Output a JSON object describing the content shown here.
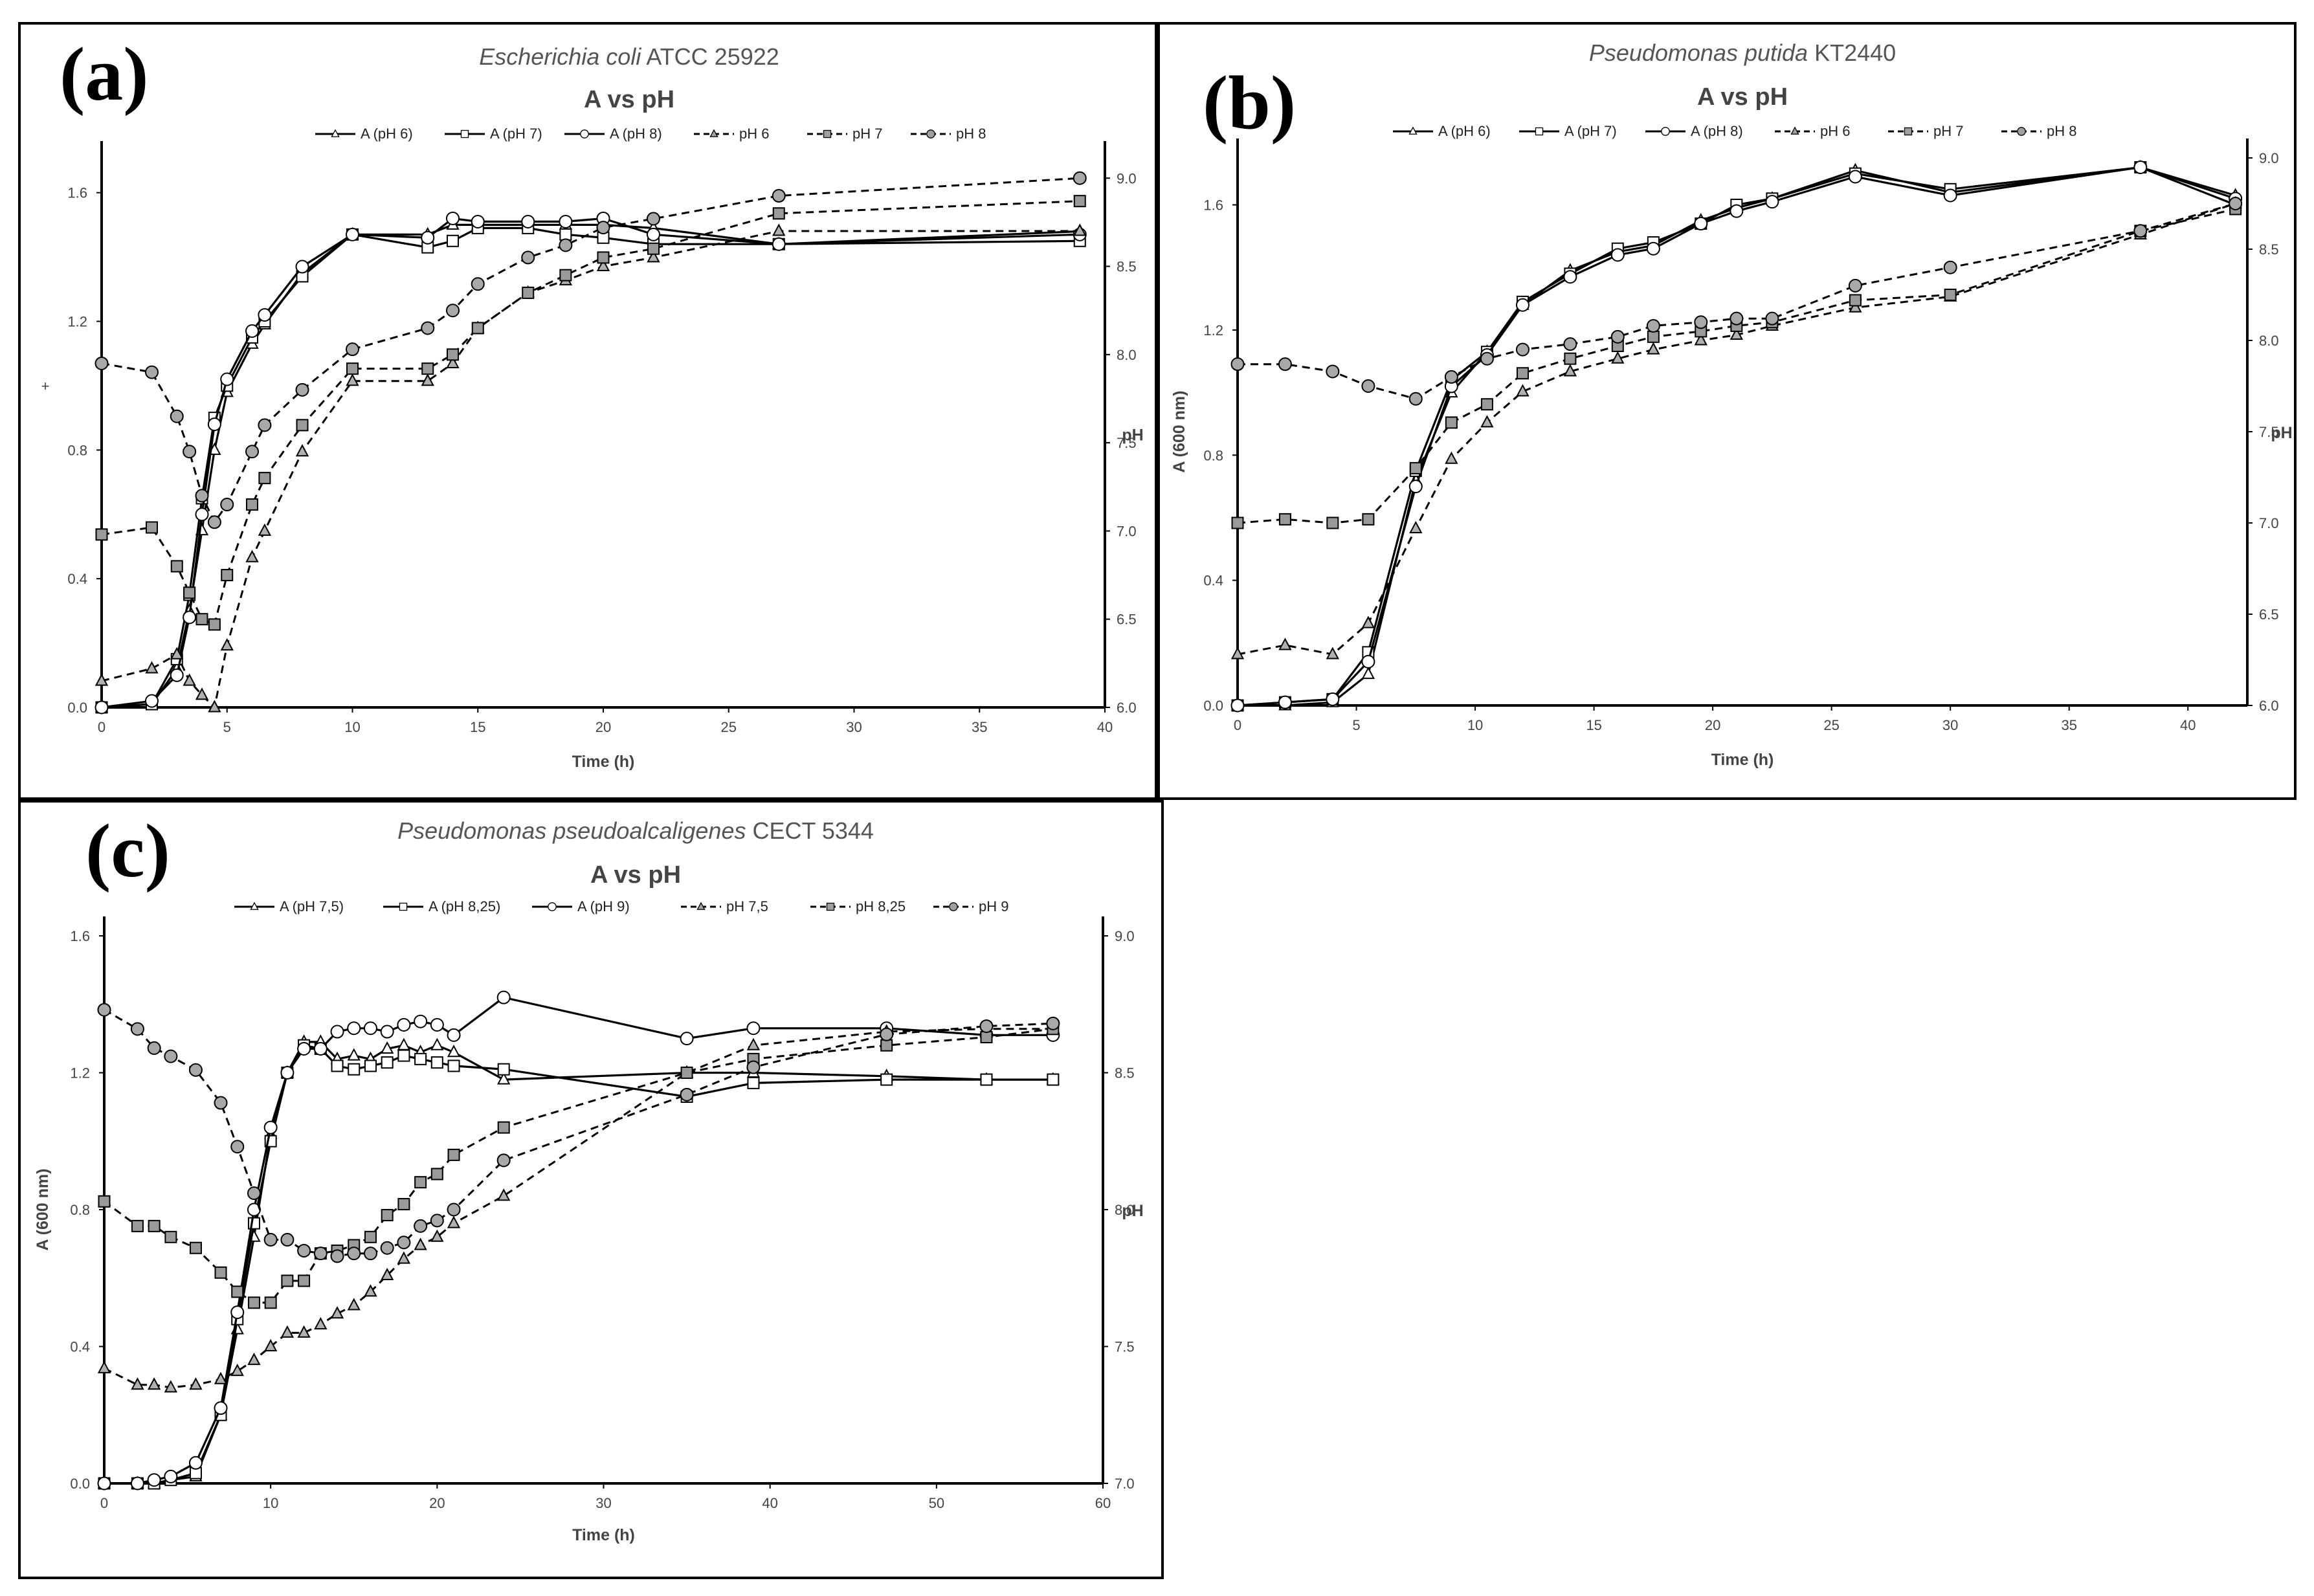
{
  "panels": {
    "a": {
      "label": "(a)"
    },
    "b": {
      "label": "(b)"
    },
    "c": {
      "label": "(c)"
    }
  },
  "chart_data": [
    {
      "id": "a",
      "type": "line",
      "title_organism": "Escherichia coli",
      "title_strain": "ATCC 25922",
      "subtitle": "A vs pH",
      "xlabel": "Time (h)",
      "ylabel": "",
      "ylabel_left_mark": "+",
      "y2label": "pH",
      "xlim": [
        0,
        40
      ],
      "xticks": [
        0,
        5,
        10,
        15,
        20,
        25,
        30,
        35,
        40
      ],
      "ylim": [
        0,
        1.7
      ],
      "yticks": [
        "0.0",
        "0.4",
        "0.8",
        "1.2",
        "1.6"
      ],
      "yticks_vals": [
        0,
        0.4,
        0.8,
        1.2,
        1.6
      ],
      "y2lim": [
        6.0,
        9.1
      ],
      "y2ticks": [
        "6.0",
        "6.5",
        "7.0",
        "7.5",
        "8.0",
        "8.5",
        "9.0"
      ],
      "y2ticks_vals": [
        6.0,
        6.5,
        7.0,
        7.5,
        8.0,
        8.5,
        9.0
      ],
      "legend": [
        "A (pH 6)",
        "A (pH 7)",
        "A (pH 8)",
        "pH 6",
        "pH 7",
        "pH 8"
      ],
      "series": [
        {
          "name": "A (pH 6)",
          "axis": "left",
          "style": "solid",
          "marker": "triangle",
          "x": [
            0,
            2,
            3,
            3.5,
            4,
            4.5,
            5,
            6,
            6.5,
            8,
            10,
            13,
            14,
            15,
            17,
            18.5,
            20,
            22,
            27,
            39
          ],
          "y": [
            0.0,
            0.01,
            0.12,
            0.3,
            0.55,
            0.8,
            0.98,
            1.13,
            1.19,
            1.35,
            1.47,
            1.47,
            1.5,
            1.5,
            1.5,
            1.5,
            1.5,
            1.49,
            1.44,
            1.48
          ]
        },
        {
          "name": "A (pH 7)",
          "axis": "left",
          "style": "solid",
          "marker": "square",
          "x": [
            0,
            2,
            3,
            3.5,
            4,
            4.5,
            5,
            6,
            6.5,
            8,
            10,
            13,
            14,
            15,
            17,
            18.5,
            20,
            22,
            27,
            39
          ],
          "y": [
            0.0,
            0.01,
            0.15,
            0.35,
            0.65,
            0.9,
            1.0,
            1.15,
            1.2,
            1.34,
            1.47,
            1.43,
            1.45,
            1.49,
            1.49,
            1.47,
            1.46,
            1.44,
            1.44,
            1.45
          ]
        },
        {
          "name": "A (pH 8)",
          "axis": "left",
          "style": "solid",
          "marker": "circle",
          "x": [
            0,
            2,
            3,
            3.5,
            4,
            4.5,
            5,
            6,
            6.5,
            8,
            10,
            13,
            14,
            15,
            17,
            18.5,
            20,
            22,
            27,
            39
          ],
          "y": [
            0.0,
            0.02,
            0.1,
            0.28,
            0.6,
            0.88,
            1.02,
            1.17,
            1.22,
            1.37,
            1.47,
            1.46,
            1.52,
            1.51,
            1.51,
            1.51,
            1.52,
            1.47,
            1.44,
            1.47
          ]
        },
        {
          "name": "pH 6",
          "axis": "right",
          "style": "dashed",
          "marker": "triangle",
          "x": [
            0,
            2,
            3,
            3.5,
            4,
            4.5,
            5,
            6,
            6.5,
            8,
            10,
            13,
            14,
            15,
            17,
            18.5,
            20,
            22,
            27,
            39
          ],
          "y": [
            6.15,
            6.22,
            6.3,
            6.15,
            6.07,
            6.0,
            6.35,
            6.85,
            7.0,
            7.45,
            7.85,
            7.85,
            7.95,
            8.15,
            8.35,
            8.42,
            8.5,
            8.55,
            8.7,
            8.7
          ]
        },
        {
          "name": "pH 7",
          "axis": "right",
          "style": "dashed",
          "marker": "square",
          "x": [
            0,
            2,
            3,
            3.5,
            4,
            4.5,
            5,
            6,
            6.5,
            8,
            10,
            13,
            14,
            15,
            17,
            18.5,
            20,
            22,
            27,
            39
          ],
          "y": [
            6.98,
            7.02,
            6.8,
            6.65,
            6.5,
            6.47,
            6.75,
            7.15,
            7.3,
            7.6,
            7.92,
            7.92,
            8.0,
            8.15,
            8.35,
            8.45,
            8.55,
            8.6,
            8.8,
            8.87
          ]
        },
        {
          "name": "pH 8",
          "axis": "right",
          "style": "dashed",
          "marker": "circle",
          "x": [
            0,
            2,
            3,
            3.5,
            4,
            4.5,
            5,
            6,
            6.5,
            8,
            10,
            13,
            14,
            15,
            17,
            18.5,
            20,
            22,
            27,
            39
          ],
          "y": [
            7.95,
            7.9,
            7.65,
            7.45,
            7.2,
            7.05,
            7.15,
            7.45,
            7.6,
            7.8,
            8.03,
            8.15,
            8.25,
            8.4,
            8.55,
            8.62,
            8.72,
            8.77,
            8.9,
            9.0
          ]
        }
      ]
    },
    {
      "id": "b",
      "type": "line",
      "title_organism": "Pseudomonas putida",
      "title_strain": "KT2440",
      "subtitle": "A vs pH",
      "xlabel": "Time (h)",
      "ylabel": "A (600 nm)",
      "y2label": "pH",
      "xlim": [
        0,
        42.5
      ],
      "xticks": [
        0,
        5,
        10,
        15,
        20,
        25,
        30,
        35,
        40
      ],
      "ylim": [
        0,
        1.75
      ],
      "yticks": [
        "0.0",
        "0.4",
        "0.8",
        "1.2",
        "1.6"
      ],
      "yticks_vals": [
        0,
        0.4,
        0.8,
        1.2,
        1.6
      ],
      "y2lim": [
        6.0,
        9.0
      ],
      "y2ticks": [
        "6.0",
        "6.5",
        "7.0",
        "7.5",
        "8.0",
        "8.5",
        "9.0"
      ],
      "y2ticks_vals": [
        6.0,
        6.5,
        7.0,
        7.5,
        8.0,
        8.5,
        9.0
      ],
      "legend": [
        "A (pH 6)",
        "A (pH 7)",
        "A (pH 8)",
        "pH 6",
        "pH 7",
        "pH 8"
      ],
      "series": [
        {
          "name": "A (pH 6)",
          "axis": "left",
          "style": "solid",
          "marker": "triangle",
          "x": [
            0,
            2,
            4,
            5.5,
            7.5,
            9,
            10.5,
            12,
            14,
            16,
            17.5,
            19.5,
            21,
            22.5,
            26,
            30,
            38,
            42
          ],
          "y": [
            0.0,
            0.0,
            0.01,
            0.1,
            0.72,
            1.0,
            1.13,
            1.28,
            1.39,
            1.45,
            1.47,
            1.55,
            1.59,
            1.62,
            1.71,
            1.64,
            1.72,
            1.63
          ]
        },
        {
          "name": "A (pH 7)",
          "axis": "left",
          "style": "solid",
          "marker": "square",
          "x": [
            0,
            2,
            4,
            5.5,
            7.5,
            9,
            10.5,
            12,
            14,
            16,
            17.5,
            19.5,
            21,
            22.5,
            26,
            30,
            38,
            42
          ],
          "y": [
            0.0,
            0.01,
            0.02,
            0.17,
            0.75,
            1.04,
            1.13,
            1.29,
            1.38,
            1.46,
            1.48,
            1.54,
            1.6,
            1.62,
            1.7,
            1.65,
            1.72,
            1.6
          ]
        },
        {
          "name": "A (pH 8)",
          "axis": "left",
          "style": "solid",
          "marker": "circle",
          "x": [
            0,
            2,
            4,
            5.5,
            7.5,
            9,
            10.5,
            12,
            14,
            16,
            17.5,
            19.5,
            21,
            22.5,
            26,
            30,
            38,
            42
          ],
          "y": [
            0.0,
            0.01,
            0.02,
            0.14,
            0.7,
            1.02,
            1.12,
            1.28,
            1.37,
            1.44,
            1.46,
            1.54,
            1.58,
            1.61,
            1.69,
            1.63,
            1.72,
            1.62
          ]
        },
        {
          "name": "pH 6",
          "axis": "right",
          "style": "dashed",
          "marker": "triangle",
          "x": [
            0,
            2,
            4,
            5.5,
            7.5,
            9,
            10.5,
            12,
            14,
            16,
            17.5,
            19.5,
            21,
            22.5,
            26,
            30,
            38,
            42
          ],
          "y": [
            6.28,
            6.33,
            6.28,
            6.45,
            6.97,
            7.35,
            7.55,
            7.72,
            7.83,
            7.9,
            7.95,
            8.0,
            8.03,
            8.08,
            8.18,
            8.24,
            8.58,
            8.75
          ]
        },
        {
          "name": "pH 7",
          "axis": "right",
          "style": "dashed",
          "marker": "square",
          "x": [
            0,
            2,
            4,
            5.5,
            7.5,
            9,
            10.5,
            12,
            14,
            16,
            17.5,
            19.5,
            21,
            22.5,
            26,
            30,
            38,
            42
          ],
          "y": [
            7.0,
            7.02,
            7.0,
            7.02,
            7.3,
            7.55,
            7.65,
            7.82,
            7.9,
            7.97,
            8.02,
            8.05,
            8.08,
            8.1,
            8.22,
            8.25,
            8.6,
            8.72
          ]
        },
        {
          "name": "pH 8",
          "axis": "right",
          "style": "dashed",
          "marker": "circle",
          "x": [
            0,
            2,
            4,
            5.5,
            7.5,
            9,
            10.5,
            12,
            14,
            16,
            17.5,
            19.5,
            21,
            22.5,
            26,
            30,
            38,
            42
          ],
          "y": [
            7.87,
            7.87,
            7.83,
            7.75,
            7.68,
            7.8,
            7.9,
            7.95,
            7.98,
            8.02,
            8.08,
            8.1,
            8.12,
            8.12,
            8.3,
            8.4,
            8.6,
            8.75
          ]
        }
      ]
    },
    {
      "id": "c",
      "type": "line",
      "title_organism": "Pseudomonas pseudoalcaligenes",
      "title_strain": "CECT 5344",
      "subtitle": "A vs pH",
      "xlabel": "Time (h)",
      "ylabel": "A (600 nm)",
      "y2label": "pH",
      "xlim": [
        0,
        60
      ],
      "xticks": [
        0,
        10,
        20,
        30,
        40,
        50,
        60
      ],
      "ylim": [
        0,
        1.6
      ],
      "yticks": [
        "0.0",
        "0.4",
        "0.8",
        "1.2",
        "1.6"
      ],
      "yticks_vals": [
        0,
        0.4,
        0.8,
        1.2,
        1.6
      ],
      "y2lim": [
        7.0,
        9.0
      ],
      "y2ticks": [
        "7.0",
        "7.5",
        "8.0",
        "8.5",
        "9.0"
      ],
      "y2ticks_vals": [
        7.0,
        7.5,
        8.0,
        8.5,
        9.0
      ],
      "legend": [
        "A (pH 7,5)",
        "A (pH 8,25)",
        "A (pH 9)",
        "pH 7,5",
        "pH 8,25",
        "pH 9"
      ],
      "series": [
        {
          "name": "A (pH 7,5)",
          "axis": "left",
          "style": "solid",
          "marker": "triangle",
          "x": [
            0,
            2,
            3,
            4,
            5.5,
            7,
            8,
            9,
            10,
            11,
            12,
            13,
            14,
            15,
            16,
            17,
            18,
            19,
            20,
            21,
            24,
            35,
            39,
            47,
            53,
            57
          ],
          "y": [
            0.0,
            0.0,
            0.0,
            0.01,
            0.02,
            0.2,
            0.45,
            0.72,
            1.02,
            1.2,
            1.29,
            1.29,
            1.24,
            1.25,
            1.24,
            1.27,
            1.28,
            1.26,
            1.28,
            1.26,
            1.18,
            1.2,
            1.2,
            1.19,
            1.18,
            1.18
          ]
        },
        {
          "name": "A (pH 8,25)",
          "axis": "left",
          "style": "solid",
          "marker": "square",
          "x": [
            0,
            2,
            3,
            4,
            5.5,
            7,
            8,
            9,
            10,
            11,
            12,
            13,
            14,
            15,
            16,
            17,
            18,
            19,
            20,
            21,
            24,
            35,
            39,
            47,
            53,
            57
          ],
          "y": [
            0.0,
            0.0,
            0.0,
            0.01,
            0.03,
            0.2,
            0.48,
            0.76,
            1.0,
            1.2,
            1.28,
            1.27,
            1.22,
            1.21,
            1.22,
            1.23,
            1.25,
            1.24,
            1.23,
            1.22,
            1.21,
            1.13,
            1.17,
            1.18,
            1.18,
            1.18
          ]
        },
        {
          "name": "A (pH 9)",
          "axis": "left",
          "style": "solid",
          "marker": "circle",
          "x": [
            0,
            2,
            3,
            4,
            5.5,
            7,
            8,
            9,
            10,
            11,
            12,
            13,
            14,
            15,
            16,
            17,
            18,
            19,
            20,
            21,
            24,
            35,
            39,
            47,
            53,
            57
          ],
          "y": [
            0.0,
            0.0,
            0.01,
            0.02,
            0.06,
            0.22,
            0.5,
            0.8,
            1.04,
            1.2,
            1.27,
            1.27,
            1.32,
            1.33,
            1.33,
            1.32,
            1.34,
            1.35,
            1.34,
            1.31,
            1.42,
            1.3,
            1.33,
            1.33,
            1.31,
            1.31
          ]
        },
        {
          "name": "pH 7,5",
          "axis": "right",
          "style": "dashed",
          "marker": "triangle",
          "x": [
            0,
            2,
            3,
            4,
            5.5,
            7,
            8,
            9,
            10,
            11,
            12,
            13,
            14,
            15,
            16,
            17,
            18,
            19,
            20,
            21,
            24,
            35,
            39,
            47,
            53,
            57
          ],
          "y": [
            7.42,
            7.36,
            7.36,
            7.35,
            7.36,
            7.38,
            7.41,
            7.45,
            7.5,
            7.55,
            7.55,
            7.58,
            7.62,
            7.65,
            7.7,
            7.76,
            7.82,
            7.87,
            7.9,
            7.95,
            8.05,
            8.5,
            8.6,
            8.65,
            8.66,
            8.66
          ]
        },
        {
          "name": "pH 8,25",
          "axis": "right",
          "style": "dashed",
          "marker": "square",
          "x": [
            0,
            2,
            3,
            4,
            5.5,
            7,
            8,
            9,
            10,
            11,
            12,
            13,
            14,
            15,
            16,
            17,
            18,
            19,
            20,
            21,
            24,
            35,
            39,
            47,
            53,
            57
          ],
          "y": [
            8.03,
            7.94,
            7.94,
            7.9,
            7.86,
            7.77,
            7.7,
            7.66,
            7.66,
            7.74,
            7.74,
            7.84,
            7.85,
            7.87,
            7.9,
            7.98,
            8.02,
            8.1,
            8.13,
            8.2,
            8.3,
            8.5,
            8.55,
            8.6,
            8.63,
            8.66
          ]
        },
        {
          "name": "pH 9",
          "axis": "right",
          "style": "dashed",
          "marker": "circle",
          "x": [
            0,
            2,
            3,
            4,
            5.5,
            7,
            8,
            9,
            10,
            11,
            12,
            13,
            14,
            15,
            16,
            17,
            18,
            19,
            20,
            21,
            24,
            35,
            39,
            47,
            53,
            57
          ],
          "y": [
            8.73,
            8.66,
            8.59,
            8.56,
            8.51,
            8.39,
            8.23,
            8.06,
            7.89,
            7.89,
            7.85,
            7.84,
            7.83,
            7.84,
            7.84,
            7.86,
            7.88,
            7.94,
            7.96,
            8.0,
            8.18,
            8.42,
            8.52,
            8.64,
            8.67,
            8.68
          ]
        }
      ]
    }
  ]
}
